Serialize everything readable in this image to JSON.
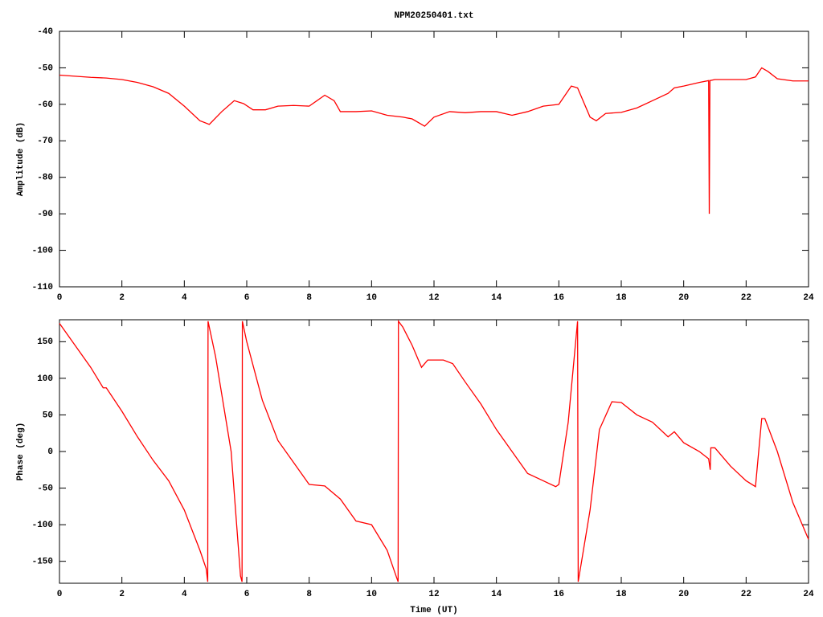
{
  "chart_data": [
    {
      "type": "line",
      "title": "NPM20250401.txt",
      "ylabel": "Amplitude (dB)",
      "x": [
        0,
        0.5,
        1,
        1.5,
        2,
        2.5,
        3,
        3.5,
        4,
        4.5,
        4.8,
        5.2,
        5.6,
        5.9,
        6.2,
        6.6,
        7,
        7.5,
        8,
        8.5,
        8.8,
        9,
        9.5,
        10,
        10.5,
        11,
        11.3,
        11.7,
        12,
        12.5,
        13,
        13.5,
        14,
        14.5,
        15,
        15.5,
        16,
        16.4,
        16.6,
        17,
        17.2,
        17.5,
        18,
        18.5,
        19,
        19.5,
        19.7,
        20,
        20.5,
        20.8,
        20.82,
        20.84,
        21,
        21.5,
        22,
        22.3,
        22.5,
        22.7,
        23,
        23.5,
        24
      ],
      "series": [
        {
          "color": "#ff0000",
          "values": [
            -52,
            -52.3,
            -52.6,
            -52.8,
            -53.2,
            -54,
            -55.2,
            -57,
            -60.5,
            -64.5,
            -65.5,
            -62,
            -59,
            -59.8,
            -61.5,
            -61.5,
            -60.5,
            -60.3,
            -60.5,
            -57.5,
            -59,
            -62,
            -62,
            -61.8,
            -63,
            -63.5,
            -64,
            -66,
            -63.5,
            -62,
            -62.3,
            -62,
            -62,
            -63,
            -62,
            -60.5,
            -60,
            -55,
            -55.5,
            -63.5,
            -64.5,
            -62.5,
            -62.2,
            -61,
            -59,
            -57,
            -55.5,
            -55,
            -54,
            -53.5,
            -90,
            -53.5,
            -53.2,
            -53.2,
            -53.2,
            -52.5,
            -50,
            -51,
            -53,
            -53.6,
            -53.6
          ]
        }
      ],
      "xlim": [
        0,
        24
      ],
      "xticks": [
        0,
        2,
        4,
        6,
        8,
        10,
        12,
        14,
        16,
        18,
        20,
        22,
        24
      ],
      "ylim": [
        -110,
        -40
      ],
      "yticks": [
        -110,
        -100,
        -90,
        -80,
        -70,
        -60,
        -50,
        -40
      ],
      "grid": false
    },
    {
      "type": "line",
      "ylabel": "Phase (deg)",
      "xlabel": "Time (UT)",
      "x": [
        0,
        0.5,
        1,
        1.4,
        1.5,
        2,
        2.5,
        3,
        3.5,
        4,
        4.5,
        4.7,
        4.75,
        4.76,
        5,
        5.5,
        5.8,
        5.85,
        5.86,
        6,
        6.5,
        7,
        7.5,
        8,
        8.5,
        9,
        9.5,
        10,
        10.5,
        10.8,
        10.85,
        10.86,
        11,
        11.3,
        11.6,
        11.8,
        12.3,
        12.6,
        13,
        13.5,
        14,
        14.5,
        15,
        15.5,
        15.9,
        16,
        16.3,
        16.6,
        16.62,
        17,
        17.3,
        17.7,
        18,
        18.5,
        19,
        19.5,
        19.7,
        20,
        20.5,
        20.8,
        20.85,
        20.87,
        21,
        21.5,
        22,
        22.3,
        22.5,
        22.6,
        23,
        23.5,
        24
      ],
      "series": [
        {
          "color": "#ff0000",
          "values": [
            175,
            145,
            115,
            87,
            87,
            55,
            20,
            -12,
            -40,
            -80,
            -135,
            -160,
            -178,
            178,
            130,
            0,
            -170,
            -178,
            178,
            150,
            70,
            15,
            -15,
            -45,
            -47,
            -65,
            -95,
            -100,
            -135,
            -172,
            -178,
            178,
            170,
            145,
            115,
            125,
            125,
            120,
            95,
            65,
            30,
            0,
            -30,
            -40,
            -48,
            -45,
            40,
            178,
            -178,
            -80,
            30,
            68,
            67,
            50,
            40,
            20,
            27,
            12,
            0,
            -10,
            -25,
            5,
            5,
            -20,
            -40,
            -48,
            45,
            45,
            0,
            -70,
            -120
          ]
        }
      ],
      "xlim": [
        0,
        24
      ],
      "xticks": [
        0,
        2,
        4,
        6,
        8,
        10,
        12,
        14,
        16,
        18,
        20,
        22,
        24
      ],
      "ylim": [
        -180,
        180
      ],
      "yticks": [
        -150,
        -100,
        -50,
        0,
        50,
        100,
        150
      ],
      "grid": false
    }
  ]
}
